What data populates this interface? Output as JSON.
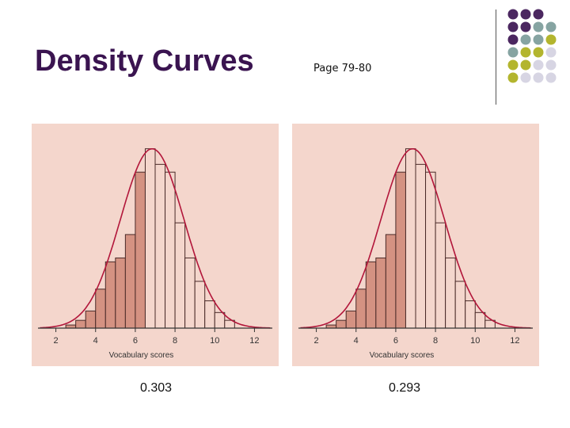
{
  "slide": {
    "title": "Density Curves",
    "page_ref": "Page 79-80"
  },
  "colors": {
    "title": "#3a1450",
    "panel_bg": "#f4d6cc",
    "shaded_bar": "#d49282",
    "bar_stroke": "#4a2a28",
    "curve": "#b2163a",
    "dots": [
      "#4b2760",
      "#86a4a2",
      "#b3b52e",
      "#d7d5e3"
    ]
  },
  "decorations": {
    "dot_grid": [
      [
        0,
        0,
        0,
        null
      ],
      [
        0,
        0,
        1,
        1
      ],
      [
        0,
        1,
        1,
        2
      ],
      [
        1,
        2,
        2,
        3
      ],
      [
        2,
        2,
        3,
        3
      ],
      [
        2,
        3,
        3,
        3
      ]
    ]
  },
  "chart_data": [
    {
      "type": "bar",
      "xlabel": "Vocabulary scores",
      "xticks": [
        "2",
        "4",
        "6",
        "8",
        "10",
        "12"
      ],
      "xlim": [
        1.1,
        12.9
      ],
      "ylim": [
        0,
        0.25
      ],
      "bin_width": 0.5,
      "bins_left_edges": [
        2.5,
        3.0,
        3.5,
        4.0,
        4.5,
        5.0,
        5.5,
        6.0,
        6.5,
        7.0,
        7.5,
        8.0,
        8.5,
        9.0,
        9.5,
        10.0,
        10.5
      ],
      "values": [
        0.004,
        0.01,
        0.022,
        0.05,
        0.085,
        0.09,
        0.12,
        0.2,
        0.23,
        0.21,
        0.2,
        0.135,
        0.09,
        0.06,
        0.035,
        0.02,
        0.01
      ],
      "shaded_through": 6.6,
      "curve": "normal",
      "caption": "0.303"
    },
    {
      "type": "bar",
      "xlabel": "Vocabulary scores",
      "xticks": [
        "2",
        "4",
        "6",
        "8",
        "10",
        "12"
      ],
      "xlim": [
        1.1,
        12.9
      ],
      "ylim": [
        0,
        0.25
      ],
      "bin_width": 0.5,
      "bins_left_edges": [
        2.5,
        3.0,
        3.5,
        4.0,
        4.5,
        5.0,
        5.5,
        6.0,
        6.5,
        7.0,
        7.5,
        8.0,
        8.5,
        9.0,
        9.5,
        10.0,
        10.5
      ],
      "values": [
        0.004,
        0.01,
        0.022,
        0.05,
        0.085,
        0.09,
        0.12,
        0.2,
        0.23,
        0.21,
        0.2,
        0.135,
        0.09,
        0.06,
        0.035,
        0.02,
        0.01
      ],
      "shaded_through": 6.6,
      "curve": "normal",
      "caption": "0.293"
    }
  ]
}
